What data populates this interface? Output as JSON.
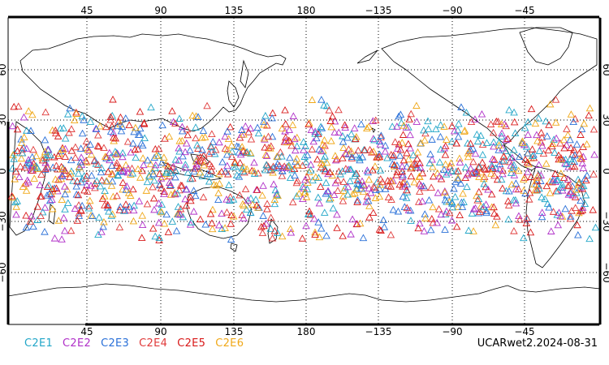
{
  "map": {
    "top_ticks": [
      "45",
      "90",
      "135",
      "180",
      "−135",
      "−90",
      "−45"
    ],
    "bottom_ticks": [
      "45",
      "90",
      "135",
      "180",
      "−135",
      "−90",
      "−45"
    ],
    "lat_ticks": [
      "60",
      "30",
      "0",
      "−30",
      "−60"
    ],
    "projection": "cylindrical equidistant, centered on 180",
    "grid": "dotted",
    "coastline": "world outline",
    "title": "UCARwet2.2024-08-31"
  },
  "legend": [
    {
      "label": "C2E1",
      "color": "#22a6c8"
    },
    {
      "label": "C2E2",
      "color": "#b030c8"
    },
    {
      "label": "C2E3",
      "color": "#2a70d8"
    },
    {
      "label": "C2E4",
      "color": "#e03a3a"
    },
    {
      "label": "C2E5",
      "color": "#d81818"
    },
    {
      "label": "C2E6",
      "color": "#f0a818"
    }
  ],
  "marker_symbol": "triangle",
  "observation_band": {
    "lat_min": -45,
    "lat_max": 45
  }
}
